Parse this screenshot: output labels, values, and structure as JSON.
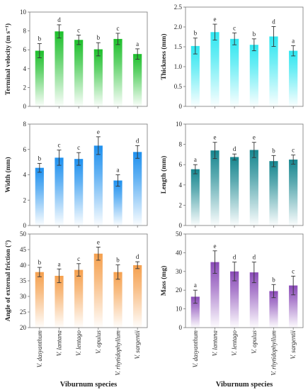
{
  "chart_data": [
    {
      "type": "bar",
      "ylabel": "Terminal velocity (m s⁻¹)",
      "ylim": [
        0,
        10
      ],
      "yticks": [
        0,
        2,
        4,
        6,
        8,
        10
      ],
      "color": "#1dbf2b",
      "categories": [
        "V. dasyanthum",
        "V. lantana",
        "V. lentago",
        "V. opulus",
        "V. rhytidophyllum",
        "V. sargentii"
      ],
      "values": [
        5.9,
        7.95,
        7.05,
        6.05,
        7.15,
        5.55
      ],
      "errors": [
        0.75,
        0.7,
        0.5,
        0.7,
        0.6,
        0.55
      ],
      "letters": [
        "b",
        "d",
        "c",
        "b",
        "c",
        "a"
      ]
    },
    {
      "type": "bar",
      "ylabel": "Thickness (mm)",
      "ylim": [
        0,
        2.5
      ],
      "yticks": [
        0,
        0.5,
        1.0,
        1.5,
        2.0,
        2.5
      ],
      "color": "#2ee6f0",
      "categories": [
        "V. dasyanthum",
        "V. lantana",
        "V. lentago",
        "V. opulus",
        "V. rhytidophyllum",
        "V. sargentii"
      ],
      "values": [
        1.52,
        1.87,
        1.7,
        1.55,
        1.76,
        1.4
      ],
      "errors": [
        0.2,
        0.2,
        0.15,
        0.15,
        0.25,
        0.13
      ],
      "letters": [
        "b",
        "e",
        "c",
        "b",
        "d",
        "a"
      ]
    },
    {
      "type": "bar",
      "ylabel": "Width (mm)",
      "ylim": [
        0,
        8
      ],
      "yticks": [
        0,
        2,
        4,
        6,
        8
      ],
      "color": "#1e90ee",
      "categories": [
        "V. dasyanthum",
        "V. lantana",
        "V. lentago",
        "V. opulus",
        "V. rhytidophyllum",
        "V. sargentii"
      ],
      "values": [
        4.55,
        5.35,
        5.25,
        6.3,
        3.55,
        5.8
      ],
      "errors": [
        0.35,
        0.6,
        0.5,
        0.7,
        0.45,
        0.5
      ],
      "letters": [
        "b",
        "c",
        "c",
        "e",
        "a",
        "d"
      ]
    },
    {
      "type": "bar",
      "ylabel": "Length (mm)",
      "ylim": [
        0,
        10
      ],
      "yticks": [
        0,
        2,
        4,
        6,
        8,
        10
      ],
      "color": "#16868f",
      "categories": [
        "V. dasyanthum",
        "V. lantana",
        "V. lentago",
        "V. opulus",
        "V. rhytidophyllum",
        "V. sargentii"
      ],
      "values": [
        5.55,
        7.4,
        6.75,
        7.45,
        6.35,
        6.5
      ],
      "errors": [
        0.45,
        0.8,
        0.3,
        0.75,
        0.55,
        0.45
      ],
      "letters": [
        "a",
        "e",
        "d",
        "e",
        "b",
        "c"
      ]
    },
    {
      "type": "bar",
      "ylabel": "Angle of external friction (°)",
      "ylim": [
        20,
        50
      ],
      "yticks": [
        20,
        25,
        30,
        35,
        40,
        45,
        50
      ],
      "color": "#f5a04e",
      "categories": [
        "V. dasyanthum",
        "V. lantana",
        "V. lentago",
        "V. opulus",
        "V. rhytidophyllum",
        "V. sargentii"
      ],
      "values": [
        37.8,
        36.6,
        38.5,
        43.7,
        37.8,
        40.0
      ],
      "errors": [
        1.5,
        2.2,
        2.0,
        2.1,
        2.3,
        1.1
      ],
      "letters": [
        "b",
        "a",
        "c",
        "e",
        "b",
        "d"
      ]
    },
    {
      "type": "bar",
      "ylabel": "Mass (mg)",
      "ylim": [
        0,
        50
      ],
      "yticks": [
        0,
        10,
        20,
        30,
        40,
        50
      ],
      "color": "#8a4bb8",
      "categories": [
        "V. dasyanthum",
        "V. lantana",
        "V. lentago",
        "V. opulus",
        "V. rhytidophyllum",
        "V. sargentii"
      ],
      "values": [
        16.5,
        35.0,
        30.0,
        29.5,
        19.5,
        22.5
      ],
      "errors": [
        3.5,
        6.0,
        5.0,
        5.5,
        3.5,
        5.0
      ],
      "letters": [
        "a",
        "e",
        "d",
        "d",
        "b",
        "c"
      ]
    }
  ],
  "xlabel": "Viburnum species"
}
